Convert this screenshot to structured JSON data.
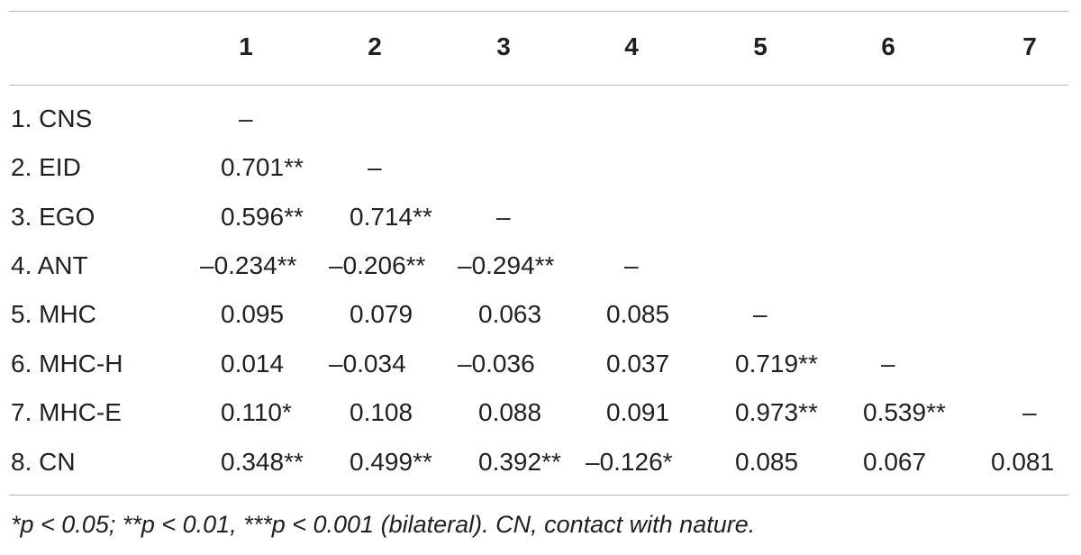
{
  "table": {
    "columns": [
      "1",
      "2",
      "3",
      "4",
      "5",
      "6",
      "7"
    ],
    "rows": [
      {
        "label": "1. CNS",
        "cells": [
          "–",
          "",
          "",
          "",
          "",
          "",
          ""
        ]
      },
      {
        "label": "2. EID",
        "cells": [
          "0.701**",
          "–",
          "",
          "",
          "",
          "",
          ""
        ]
      },
      {
        "label": "3. EGO",
        "cells": [
          "0.596**",
          "0.714**",
          "–",
          "",
          "",
          "",
          ""
        ]
      },
      {
        "label": "4. ANT",
        "cells": [
          "–0.234**",
          "–0.206**",
          "–0.294**",
          "–",
          "",
          "",
          ""
        ]
      },
      {
        "label": "5. MHC",
        "cells": [
          "0.095",
          "0.079",
          "0.063",
          "0.085",
          "–",
          "",
          ""
        ]
      },
      {
        "label": "6. MHC-H",
        "cells": [
          "0.014",
          "–0.034",
          "–0.036",
          "0.037",
          "0.719**",
          "–",
          ""
        ]
      },
      {
        "label": "7. MHC-E",
        "cells": [
          "0.110*",
          "0.108",
          "0.088",
          "0.091",
          "0.973**",
          "0.539**",
          "–"
        ]
      },
      {
        "label": "8. CN",
        "cells": [
          "0.348**",
          "0.499**",
          "0.392**",
          "–0.126*",
          "0.085",
          "0.067",
          "0.081"
        ]
      }
    ],
    "footnote": "*p < 0.05; **p < 0.01, ***p < 0.001 (bilateral). CN, contact with nature."
  }
}
